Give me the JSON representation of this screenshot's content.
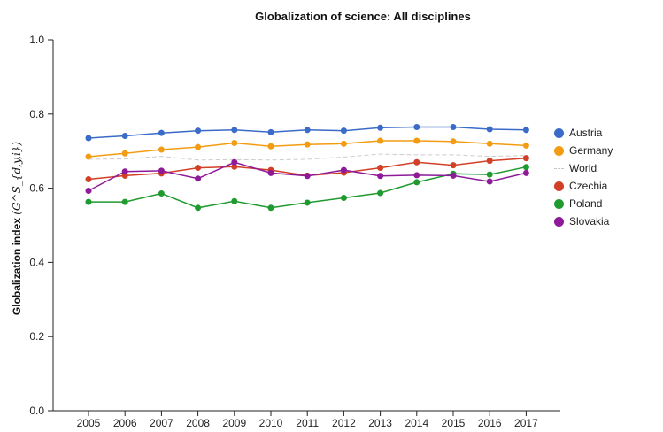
{
  "chart_data": {
    "type": "line",
    "title": "Globalization of science: All disciplines",
    "xlabel": "",
    "ylabel": "Globalization index",
    "ylabel_symbol": "(G^S_{d,y,i})",
    "categories": [
      "2005",
      "2006",
      "2007",
      "2008",
      "2009",
      "2010",
      "2011",
      "2012",
      "2013",
      "2014",
      "2015",
      "2016",
      "2017"
    ],
    "ylim": [
      0.0,
      1.0
    ],
    "yticks": [
      "0.0",
      "0.2",
      "0.4",
      "0.6",
      "0.8",
      "1.0"
    ],
    "series": [
      {
        "name": "Austria",
        "color": "#3a6bc9",
        "style": "solid",
        "markers": true,
        "values": [
          0.735,
          0.741,
          0.749,
          0.755,
          0.757,
          0.751,
          0.757,
          0.755,
          0.763,
          0.765,
          0.765,
          0.759,
          0.757
        ]
      },
      {
        "name": "Germany",
        "color": "#f39c12",
        "style": "solid",
        "markers": true,
        "values": [
          0.685,
          0.694,
          0.704,
          0.711,
          0.722,
          0.713,
          0.718,
          0.72,
          0.728,
          0.728,
          0.726,
          0.72,
          0.715
        ]
      },
      {
        "name": "World",
        "color": "#cccccc",
        "style": "dashed",
        "markers": false,
        "values": [
          0.678,
          0.679,
          0.686,
          0.676,
          0.677,
          0.676,
          0.678,
          0.684,
          0.692,
          0.69,
          0.69,
          0.686,
          0.688
        ]
      },
      {
        "name": "Czechia",
        "color": "#d13f27",
        "style": "solid",
        "markers": true,
        "values": [
          0.624,
          0.634,
          0.64,
          0.655,
          0.658,
          0.649,
          0.634,
          0.642,
          0.655,
          0.67,
          0.662,
          0.674,
          0.681
        ]
      },
      {
        "name": "Poland",
        "color": "#1f9a2f",
        "style": "solid",
        "markers": true,
        "values": [
          0.563,
          0.563,
          0.586,
          0.547,
          0.565,
          0.547,
          0.561,
          0.574,
          0.587,
          0.616,
          0.639,
          0.637,
          0.657
        ]
      },
      {
        "name": "Slovakia",
        "color": "#8e1a9a",
        "style": "solid",
        "markers": true,
        "values": [
          0.593,
          0.645,
          0.647,
          0.626,
          0.67,
          0.641,
          0.633,
          0.649,
          0.633,
          0.635,
          0.634,
          0.618,
          0.641
        ]
      }
    ]
  }
}
